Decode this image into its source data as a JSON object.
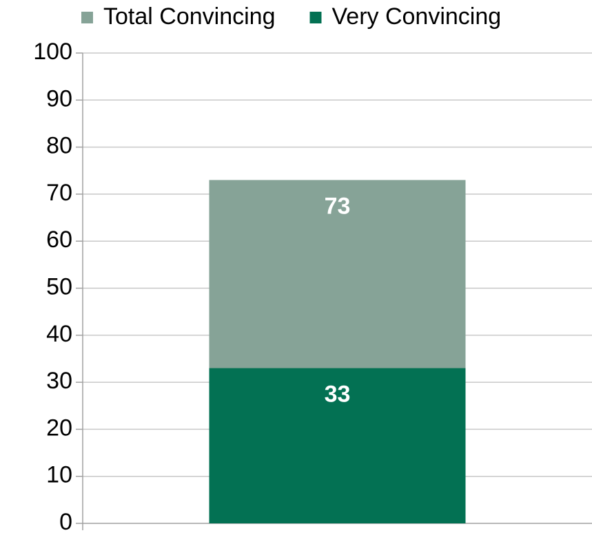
{
  "chart_data": {
    "type": "bar",
    "overlap": true,
    "categories": [
      null
    ],
    "series": [
      {
        "name": "Total Convincing",
        "color": "#86a397",
        "values": [
          73
        ]
      },
      {
        "name": "Very Convincing",
        "color": "#037153",
        "values": [
          33
        ]
      }
    ],
    "ylim": [
      0,
      100
    ],
    "yticks": [
      0,
      10,
      20,
      30,
      40,
      50,
      60,
      70,
      80,
      90,
      100
    ],
    "grid": true,
    "legend": "top"
  }
}
